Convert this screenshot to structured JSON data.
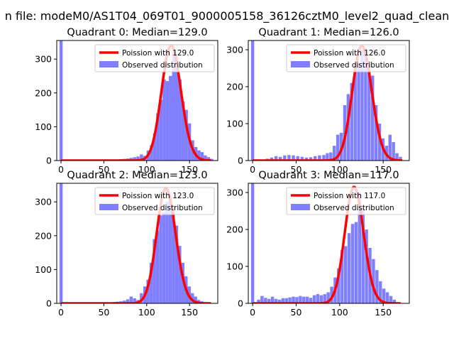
{
  "figure": {
    "suptitle": "n file: modeM0/AS1T04_069T01_9000005158_36126cztM0_level2_quad_clean"
  },
  "colors": {
    "observed": "#8080ff",
    "poisson": "#ff0000",
    "legend_edge": "#cccccc",
    "axes": "#000000"
  },
  "chart_data": [
    {
      "type": "bar",
      "title": "Quadrant 0: Median=129.0",
      "median": 129.0,
      "xlim": [
        -5,
        183
      ],
      "ylim": [
        0,
        355
      ],
      "xticks": [
        0,
        50,
        100,
        150
      ],
      "yticks": [
        0,
        100,
        200,
        300
      ],
      "legend": {
        "position": "upper right",
        "entries": [
          "Poission with 129.0",
          "Observed distribution"
        ]
      },
      "bin_width": 3.7,
      "series": [
        {
          "name": "Observed distribution",
          "kind": "histogram",
          "bins": [
            [
              -1.8,
              355
            ],
            [
              0,
              0
            ],
            [
              50,
              2
            ],
            [
              56,
              2
            ],
            [
              60,
              3
            ],
            [
              64,
              3
            ],
            [
              68,
              4
            ],
            [
              72,
              5
            ],
            [
              76,
              6
            ],
            [
              80,
              8
            ],
            [
              84,
              10
            ],
            [
              88,
              12
            ],
            [
              92,
              18
            ],
            [
              96,
              14
            ],
            [
              100,
              30
            ],
            [
              103.7,
              45
            ],
            [
              107.4,
              80
            ],
            [
              111.1,
              140
            ],
            [
              114.8,
              180
            ],
            [
              118.5,
              240
            ],
            [
              122.2,
              235
            ],
            [
              125.9,
              250
            ],
            [
              129.6,
              320
            ],
            [
              133.3,
              310
            ],
            [
              137,
              240
            ],
            [
              140.7,
              175
            ],
            [
              144.4,
              150
            ],
            [
              148.1,
              110
            ],
            [
              151.8,
              60
            ],
            [
              155.5,
              40
            ],
            [
              159.2,
              30
            ],
            [
              162.9,
              25
            ],
            [
              166.6,
              15
            ],
            [
              170.3,
              10
            ],
            [
              174,
              5
            ]
          ]
        },
        {
          "name": "Poission with 129.0",
          "kind": "poisson",
          "mean": 129.0,
          "peak": 340,
          "x_range": [
            0,
            175
          ]
        }
      ]
    },
    {
      "type": "bar",
      "title": "Quadrant 1: Median=126.0",
      "median": 126.0,
      "xlim": [
        -5,
        180
      ],
      "ylim": [
        0,
        325
      ],
      "xticks": [
        0,
        50,
        100,
        150
      ],
      "yticks": [
        0,
        100,
        200,
        300
      ],
      "legend": {
        "position": "upper right",
        "entries": [
          "Poission with 126.0",
          "Observed distribution"
        ]
      },
      "bin_width": 3.6,
      "series": [
        {
          "name": "Observed distribution",
          "kind": "histogram",
          "bins": [
            [
              -1.8,
              325
            ],
            [
              15,
              5
            ],
            [
              20,
              8
            ],
            [
              25,
              12
            ],
            [
              30,
              10
            ],
            [
              35,
              14
            ],
            [
              40,
              15
            ],
            [
              45,
              14
            ],
            [
              50,
              12
            ],
            [
              55,
              10
            ],
            [
              60,
              8
            ],
            [
              65,
              9
            ],
            [
              70,
              12
            ],
            [
              75,
              14
            ],
            [
              80,
              15
            ],
            [
              84,
              20
            ],
            [
              88,
              22
            ],
            [
              92,
              40
            ],
            [
              96,
              70
            ],
            [
              100,
              75
            ],
            [
              104,
              150
            ],
            [
              108,
              180
            ],
            [
              112,
              210
            ],
            [
              116,
              250
            ],
            [
              120,
              265
            ],
            [
              124,
              300
            ],
            [
              128,
              305
            ],
            [
              132,
              270
            ],
            [
              136,
              230
            ],
            [
              140,
              150
            ],
            [
              144,
              100
            ],
            [
              148,
              60
            ],
            [
              152,
              40
            ],
            [
              156,
              70
            ],
            [
              160,
              50
            ],
            [
              164,
              20
            ],
            [
              168,
              10
            ]
          ]
        },
        {
          "name": "Poission with 126.0",
          "kind": "poisson",
          "mean": 126.0,
          "peak": 310,
          "x_range": [
            0,
            172
          ]
        }
      ]
    },
    {
      "type": "bar",
      "title": "Quadrant 2: Median=123.0",
      "median": 123.0,
      "xlim": [
        -5,
        183
      ],
      "ylim": [
        0,
        355
      ],
      "xticks": [
        0,
        50,
        100,
        150
      ],
      "yticks": [
        0,
        100,
        200,
        300
      ],
      "legend": {
        "position": "upper right",
        "entries": [
          "Poission with 123.0",
          "Observed distribution"
        ]
      },
      "bin_width": 3.7,
      "series": [
        {
          "name": "Observed distribution",
          "kind": "histogram",
          "bins": [
            [
              -1.8,
              355
            ],
            [
              45,
              2
            ],
            [
              50,
              2
            ],
            [
              56,
              3
            ],
            [
              60,
              4
            ],
            [
              64,
              5
            ],
            [
              68,
              6
            ],
            [
              72,
              8
            ],
            [
              76,
              12
            ],
            [
              80,
              20
            ],
            [
              84,
              15
            ],
            [
              88,
              10
            ],
            [
              92,
              30
            ],
            [
              96,
              50
            ],
            [
              99.7,
              70
            ],
            [
              103.4,
              120
            ],
            [
              107.1,
              190
            ],
            [
              110.8,
              215
            ],
            [
              114.5,
              260
            ],
            [
              118.2,
              270
            ],
            [
              121.9,
              300
            ],
            [
              125.6,
              320
            ],
            [
              129.3,
              290
            ],
            [
              133,
              230
            ],
            [
              136.7,
              170
            ],
            [
              140.4,
              120
            ],
            [
              144.1,
              80
            ],
            [
              147.8,
              50
            ],
            [
              151.5,
              30
            ],
            [
              155.2,
              20
            ],
            [
              158.9,
              10
            ],
            [
              162.6,
              6
            ]
          ]
        },
        {
          "name": "Poission with 123.0",
          "kind": "poisson",
          "mean": 123.0,
          "peak": 340,
          "x_range": [
            0,
            175
          ]
        }
      ]
    },
    {
      "type": "bar",
      "title": "Quadrant 3: Median=117.0",
      "median": 117.0,
      "xlim": [
        -5,
        180
      ],
      "ylim": [
        0,
        325
      ],
      "xticks": [
        0,
        50,
        100,
        150
      ],
      "yticks": [
        0,
        100,
        200,
        300
      ],
      "legend": {
        "position": "upper right",
        "entries": [
          "Poission with 117.0",
          "Observed distribution"
        ]
      },
      "bin_width": 3.6,
      "series": [
        {
          "name": "Observed distribution",
          "kind": "histogram",
          "bins": [
            [
              -1.8,
              325
            ],
            [
              5,
              10
            ],
            [
              9,
              20
            ],
            [
              13,
              15
            ],
            [
              17,
              12
            ],
            [
              21,
              18
            ],
            [
              25,
              12
            ],
            [
              29,
              10
            ],
            [
              33,
              14
            ],
            [
              37,
              14
            ],
            [
              41,
              16
            ],
            [
              45,
              18
            ],
            [
              49,
              17
            ],
            [
              53,
              20
            ],
            [
              57,
              18
            ],
            [
              61,
              18
            ],
            [
              65,
              15
            ],
            [
              69,
              22
            ],
            [
              73,
              25
            ],
            [
              77,
              22
            ],
            [
              81,
              25
            ],
            [
              85,
              30
            ],
            [
              89,
              45
            ],
            [
              93,
              70
            ],
            [
              97,
              95
            ],
            [
              101,
              145
            ],
            [
              105,
              155
            ],
            [
              109,
              190
            ],
            [
              113,
              215
            ],
            [
              117,
              220
            ],
            [
              121,
              300
            ],
            [
              125,
              260
            ],
            [
              129,
              200
            ],
            [
              133,
              150
            ],
            [
              137,
              120
            ],
            [
              141,
              90
            ],
            [
              145,
              60
            ],
            [
              149,
              40
            ],
            [
              153,
              30
            ],
            [
              157,
              20
            ],
            [
              161,
              10
            ]
          ]
        },
        {
          "name": "Poission with 117.0",
          "kind": "poisson",
          "mean": 117.0,
          "peak": 315,
          "x_range": [
            0,
            170
          ]
        }
      ]
    }
  ]
}
